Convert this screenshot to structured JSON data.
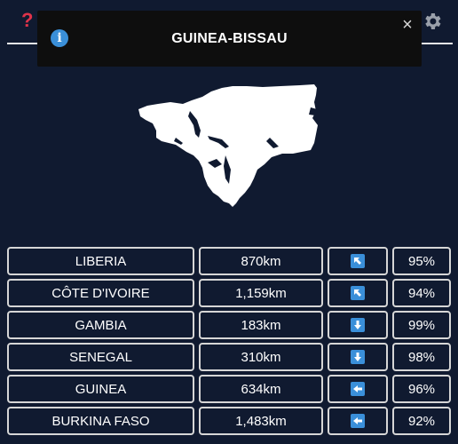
{
  "banner": {
    "title": "GUINEA-BISSAU"
  },
  "guesses": [
    {
      "country": "LIBERIA",
      "distance": "870km",
      "direction": "up-left",
      "proximity": "95%"
    },
    {
      "country": "CÔTE D'IVOIRE",
      "distance": "1,159km",
      "direction": "up-left",
      "proximity": "94%"
    },
    {
      "country": "GAMBIA",
      "distance": "183km",
      "direction": "down",
      "proximity": "99%"
    },
    {
      "country": "SENEGAL",
      "distance": "310km",
      "direction": "down",
      "proximity": "98%"
    },
    {
      "country": "GUINEA",
      "distance": "634km",
      "direction": "left",
      "proximity": "96%"
    },
    {
      "country": "BURKINA FASO",
      "distance": "1,483km",
      "direction": "left",
      "proximity": "92%"
    }
  ],
  "colors": {
    "background": "#101a30",
    "accent": "#3a8fd9",
    "help": "#e0334a",
    "cell_border": "#d6d6d6"
  },
  "icons": {
    "help": "question-mark-icon",
    "settings": "gear-icon",
    "info": "info-icon",
    "close": "close-icon"
  }
}
